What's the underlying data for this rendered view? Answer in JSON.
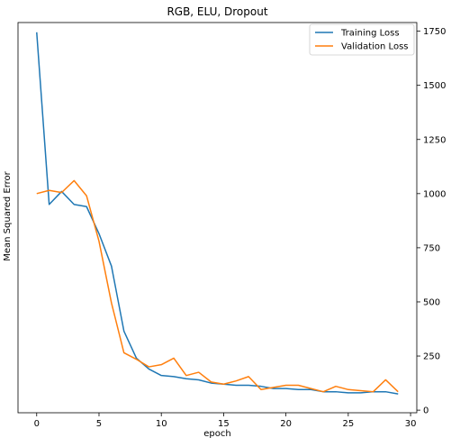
{
  "chart_data": {
    "type": "line",
    "title": "RGB, ELU, Dropout",
    "xlabel": "epoch",
    "ylabel": "Mean Squared Error",
    "y_axis_side": "right",
    "xlim": [
      -1.5,
      30.5
    ],
    "ylim": [
      -12,
      1790
    ],
    "x_ticks": [
      0,
      5,
      10,
      15,
      20,
      25,
      30
    ],
    "y_ticks": [
      0,
      250,
      500,
      750,
      1000,
      1250,
      1500,
      1750
    ],
    "grid": false,
    "legend_position": "top-right",
    "x": [
      0,
      1,
      2,
      3,
      4,
      5,
      6,
      7,
      8,
      9,
      10,
      11,
      12,
      13,
      14,
      15,
      16,
      17,
      18,
      19,
      20,
      21,
      22,
      23,
      24,
      25,
      26,
      27,
      28,
      29
    ],
    "series": [
      {
        "name": "Training Loss",
        "color": "#1f77b4",
        "values": [
          1745,
          950,
          1010,
          950,
          940,
          815,
          665,
          365,
          240,
          190,
          160,
          155,
          145,
          140,
          125,
          120,
          115,
          115,
          110,
          100,
          100,
          95,
          95,
          85,
          85,
          80,
          80,
          85,
          85,
          75
        ]
      },
      {
        "name": "Validation Loss",
        "color": "#ff7f0e",
        "values": [
          1000,
          1015,
          1005,
          1060,
          990,
          780,
          495,
          265,
          235,
          200,
          210,
          240,
          160,
          175,
          130,
          120,
          135,
          155,
          95,
          105,
          115,
          115,
          100,
          85,
          110,
          95,
          90,
          85,
          140,
          85
        ]
      }
    ]
  }
}
